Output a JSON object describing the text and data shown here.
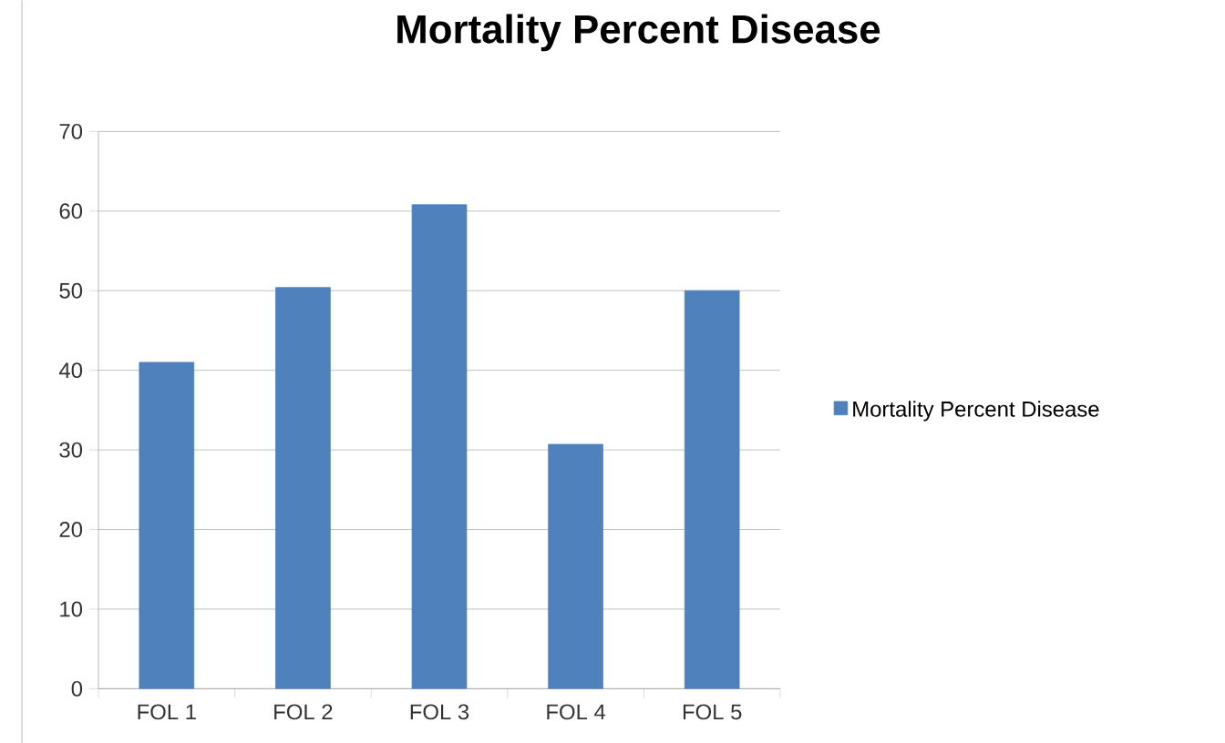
{
  "chart_data": {
    "type": "bar",
    "title": "Mortality Percent Disease",
    "categories": [
      "FOL 1",
      "FOL 2",
      "FOL 3",
      "FOL 4",
      "FOL 5"
    ],
    "series": [
      {
        "name": "Mortality Percent Disease",
        "color": "#4f81bd",
        "values": [
          41,
          50.4,
          60.8,
          30.7,
          50
        ]
      }
    ],
    "ylim": [
      0,
      70
    ],
    "yticks": [
      0,
      10,
      20,
      30,
      40,
      50,
      60,
      70
    ],
    "grid": "y",
    "legend": "right"
  }
}
